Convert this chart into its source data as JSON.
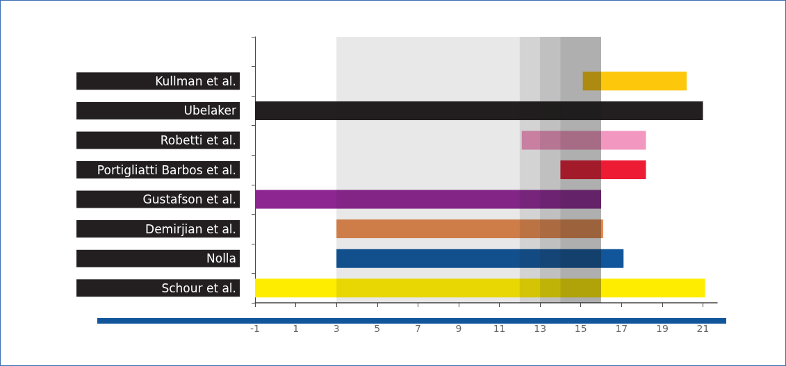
{
  "chart_data": {
    "type": "bar",
    "orientation": "horizontal",
    "categories": [
      null,
      "Kullman et al.",
      "Ubelaker",
      "Robetti et al.",
      "Portigliatti Barbos et al.",
      "Gustafson et al.",
      "Demirjian et al.",
      "Nolla",
      "Schour et al."
    ],
    "base": [
      null,
      15.1,
      -1,
      12.1,
      14,
      -1,
      3,
      3,
      -1
    ],
    "values": [
      null,
      5.1,
      22,
      6.1,
      4.2,
      17,
      13.1,
      14.1,
      22.1
    ],
    "colors": [
      null,
      "#fdc70c",
      "#231f20",
      "#f298c0",
      "#ed1b34",
      "#8e2692",
      "#e3884f",
      "#11569a",
      "#ffed00"
    ],
    "xlim": [
      -1,
      21.7
    ],
    "xticks": [
      -1,
      1,
      3,
      5,
      7,
      9,
      11,
      13,
      15,
      17,
      19,
      21
    ],
    "bands": [
      {
        "axis": "x",
        "from": 3,
        "to": 16
      },
      {
        "axis": "x",
        "from": 12,
        "to": 16
      },
      {
        "axis": "x",
        "from": 13,
        "to": 16
      },
      {
        "axis": "x",
        "from": 14,
        "to": 16
      }
    ],
    "grid": false
  }
}
